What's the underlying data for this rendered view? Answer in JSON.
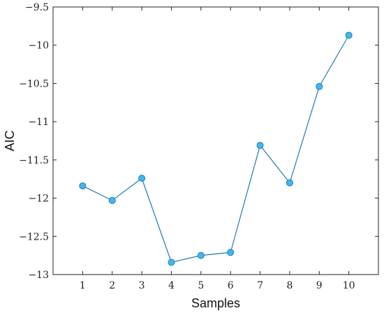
{
  "chart_data": {
    "type": "line",
    "title": "",
    "xlabel": "Samples",
    "ylabel": "AIC",
    "x": [
      1,
      2,
      3,
      4,
      5,
      6,
      7,
      8,
      9,
      10
    ],
    "series": [
      {
        "values": [
          -11.84,
          -12.03,
          -11.74,
          -12.84,
          -12.75,
          -12.71,
          -11.31,
          -11.8,
          -10.54,
          -9.87
        ],
        "color": "#3fb8ee",
        "line_color": "#1f7ab8"
      }
    ],
    "xticks": [
      1,
      2,
      3,
      4,
      5,
      6,
      7,
      8,
      9,
      10
    ],
    "xtick_labels": [
      "1",
      "2",
      "3",
      "4",
      "5",
      "6",
      "7",
      "8",
      "9",
      "10"
    ],
    "yticks": [
      -9.5,
      -10,
      -10.5,
      -11,
      -11.5,
      -12,
      -12.5,
      -13
    ],
    "ytick_labels": [
      "−9.5",
      "−10",
      "−10.5",
      "−11",
      "−11.5",
      "−12",
      "−12.5",
      "−13"
    ],
    "xlim": [
      0,
      11
    ],
    "ylim": [
      -13,
      -9.5
    ],
    "grid": false,
    "legend": "none"
  }
}
